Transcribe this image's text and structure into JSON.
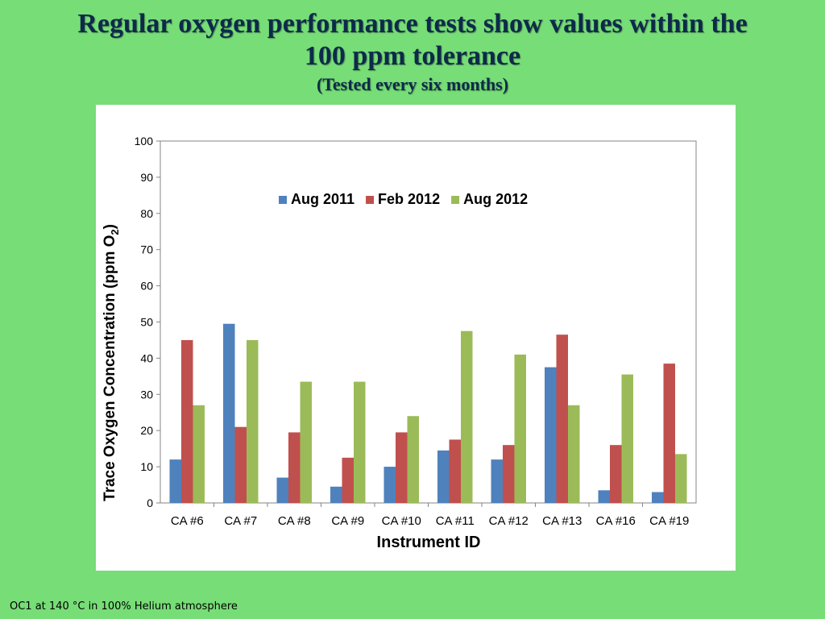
{
  "slide": {
    "title_line1": "Regular oxygen performance tests show values within the",
    "title_line2": "100 ppm tolerance",
    "subtitle": "(Tested every six months)",
    "footnote": "OC1 at 140 °C in 100% Helium atmosphere"
  },
  "chart_data": {
    "type": "bar",
    "xlabel": "Instrument ID",
    "ylabel": "Trace Oxygen Concentration (ppm O2)",
    "ylabel_main": "Trace Oxygen Concentration (ppm O",
    "ylabel_sub": "2",
    "ylabel_tail": ")",
    "ylim": [
      0,
      100
    ],
    "yticks": [
      0,
      10,
      20,
      30,
      40,
      50,
      60,
      70,
      80,
      90,
      100
    ],
    "legend_position": "top-center",
    "grid": false,
    "categories": [
      "CA #6",
      "CA #7",
      "CA #8",
      "CA #9",
      "CA #10",
      "CA #11",
      "CA #12",
      "CA #13",
      "CA #16",
      "CA #19"
    ],
    "series": [
      {
        "name": "Aug 2011",
        "color": "#4f81bd",
        "values": [
          12,
          49.5,
          7,
          4.5,
          10,
          14.5,
          12,
          37.5,
          3.5,
          3
        ]
      },
      {
        "name": "Feb 2012",
        "color": "#c0504d",
        "values": [
          45,
          21,
          19.5,
          12.5,
          19.5,
          17.5,
          16,
          46.5,
          16,
          38.5
        ]
      },
      {
        "name": "Aug 2012",
        "color": "#9bbb59",
        "values": [
          27,
          45,
          33.5,
          33.5,
          24,
          47.5,
          41,
          27,
          35.5,
          13.5
        ]
      }
    ]
  }
}
